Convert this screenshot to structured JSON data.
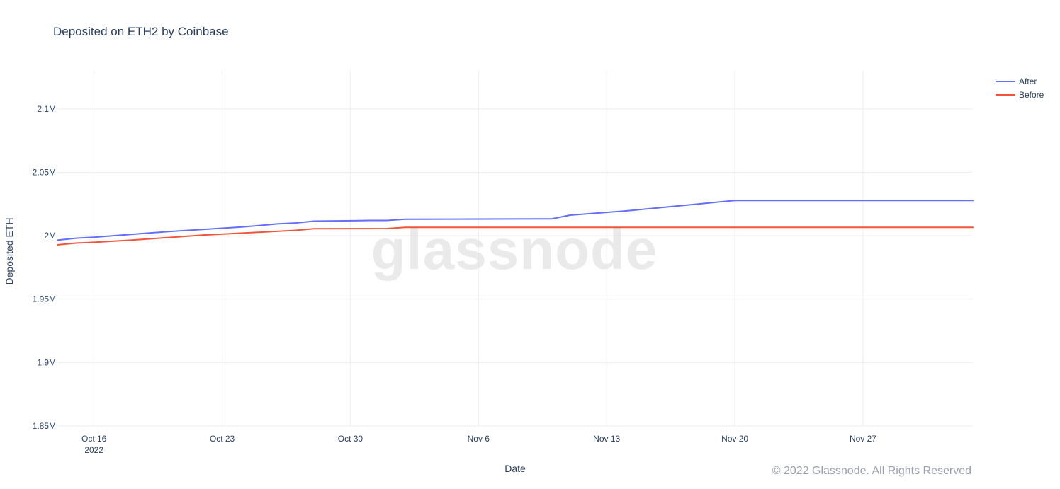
{
  "chart_data": {
    "type": "line",
    "title": "Deposited on ETH2 by Coinbase",
    "xlabel": "Date",
    "ylabel": "Deposited ETH",
    "x_axis_type": "date",
    "xlim": [
      "2022-10-14",
      "2022-12-03"
    ],
    "ylim": [
      1850000,
      2130000
    ],
    "grid": true,
    "legend_position": "top-right",
    "x_ticks": [
      {
        "date": "2022-10-16",
        "label": "Oct 16",
        "sublabel": "2022"
      },
      {
        "date": "2022-10-23",
        "label": "Oct 23",
        "sublabel": ""
      },
      {
        "date": "2022-10-30",
        "label": "Oct 30",
        "sublabel": ""
      },
      {
        "date": "2022-11-06",
        "label": "Nov 6",
        "sublabel": ""
      },
      {
        "date": "2022-11-13",
        "label": "Nov 13",
        "sublabel": ""
      },
      {
        "date": "2022-11-20",
        "label": "Nov 20",
        "sublabel": ""
      },
      {
        "date": "2022-11-27",
        "label": "Nov 27",
        "sublabel": ""
      }
    ],
    "y_ticks": [
      {
        "value": 1850000,
        "label": "1.85M"
      },
      {
        "value": 1900000,
        "label": "1.9M"
      },
      {
        "value": 1950000,
        "label": "1.95M"
      },
      {
        "value": 2000000,
        "label": "2M"
      },
      {
        "value": 2050000,
        "label": "2.05M"
      },
      {
        "value": 2100000,
        "label": "2.1M"
      }
    ],
    "series": [
      {
        "name": "After",
        "color": "#636efa",
        "points": [
          [
            "2022-10-14",
            1996500
          ],
          [
            "2022-10-15",
            1998000
          ],
          [
            "2022-10-16",
            1998800
          ],
          [
            "2022-10-18",
            2001000
          ],
          [
            "2022-10-20",
            2003200
          ],
          [
            "2022-10-22",
            2005000
          ],
          [
            "2022-10-24",
            2006800
          ],
          [
            "2022-10-25",
            2008000
          ],
          [
            "2022-10-26",
            2009300
          ],
          [
            "2022-10-27",
            2010000
          ],
          [
            "2022-10-28",
            2011500
          ],
          [
            "2022-10-31",
            2012000
          ],
          [
            "2022-11-01",
            2012000
          ],
          [
            "2022-11-02",
            2013000
          ],
          [
            "2022-11-10",
            2013300
          ],
          [
            "2022-11-11",
            2016200
          ],
          [
            "2022-11-14",
            2019500
          ],
          [
            "2022-11-18",
            2025000
          ],
          [
            "2022-11-20",
            2027800
          ],
          [
            "2022-12-03",
            2027800
          ]
        ]
      },
      {
        "name": "Before",
        "color": "#ef553b",
        "points": [
          [
            "2022-10-14",
            1992800
          ],
          [
            "2022-10-15",
            1994200
          ],
          [
            "2022-10-16",
            1994800
          ],
          [
            "2022-10-18",
            1996500
          ],
          [
            "2022-10-20",
            1998500
          ],
          [
            "2022-10-22",
            2000500
          ],
          [
            "2022-10-24",
            2002000
          ],
          [
            "2022-10-27",
            2004200
          ],
          [
            "2022-10-28",
            2005500
          ],
          [
            "2022-11-01",
            2005600
          ],
          [
            "2022-11-02",
            2006600
          ],
          [
            "2022-12-03",
            2006600
          ]
        ]
      }
    ]
  },
  "watermark": "glassnode",
  "copyright": "© 2022 Glassnode. All Rights Reserved"
}
